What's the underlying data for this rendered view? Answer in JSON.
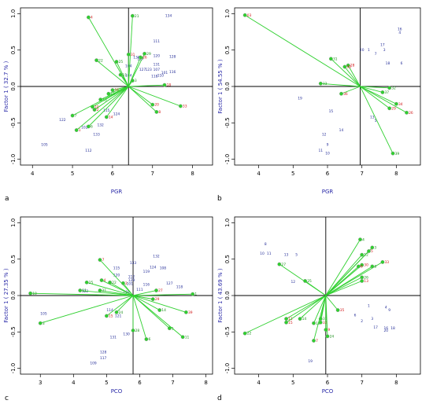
{
  "colors": {
    "vector": "#2fd02f",
    "observation": "#27309a",
    "dot_outline": "#8a8a8a",
    "axis_title": "#2a2aa8",
    "red_label": "#d11b1b",
    "green_label": "#1a8f1a"
  },
  "chart_data": [
    {
      "type": "scatter",
      "panel": "a",
      "xlabel": "PGR",
      "ylabel": "Factor 1 ( 32.7 % )",
      "xlim": [
        3.7,
        8.5
      ],
      "ylim": [
        -1.08,
        1.08
      ],
      "xticks": [
        "4",
        "5",
        "6",
        "7",
        "8"
      ],
      "yticks": [
        "-1.0",
        "-0.5",
        "0.0",
        "0.5",
        "1.0"
      ],
      "origin": [
        6.4,
        0.0
      ],
      "vectors": [
        {
          "label": "4",
          "x": 5.4,
          "y": 0.95,
          "color": "red"
        },
        {
          "label": "21",
          "x": 6.5,
          "y": 0.97,
          "color": "green"
        },
        {
          "label": "33",
          "x": 7.7,
          "y": -0.27,
          "color": "red"
        },
        {
          "label": "18",
          "x": 7.3,
          "y": 0.02,
          "color": "red"
        },
        {
          "label": "25",
          "x": 6.1,
          "y": 0.34,
          "color": "green"
        },
        {
          "label": "22",
          "x": 5.6,
          "y": 0.36,
          "color": "green"
        },
        {
          "label": "31",
          "x": 6.4,
          "y": 0.44,
          "color": "red"
        },
        {
          "label": "29",
          "x": 6.8,
          "y": 0.45,
          "color": "green"
        },
        {
          "label": "26",
          "x": 6.7,
          "y": 0.4,
          "color": "red"
        },
        {
          "label": "11",
          "x": 6.2,
          "y": 0.16,
          "color": "green"
        },
        {
          "label": "20",
          "x": 7.0,
          "y": -0.25,
          "color": "red"
        },
        {
          "label": "8",
          "x": 7.1,
          "y": -0.35,
          "color": "red"
        },
        {
          "label": "16",
          "x": 6.0,
          "y": -0.05,
          "color": "red"
        },
        {
          "label": "13",
          "x": 5.9,
          "y": -0.1,
          "color": "green"
        },
        {
          "label": "15",
          "x": 5.7,
          "y": -0.18,
          "color": "green"
        },
        {
          "label": "10",
          "x": 5.5,
          "y": -0.28,
          "color": "red"
        },
        {
          "label": "2",
          "x": 5.55,
          "y": -0.32,
          "color": "red"
        },
        {
          "label": "7",
          "x": 5.0,
          "y": -0.4,
          "color": "green"
        },
        {
          "label": "1",
          "x": 5.1,
          "y": -0.6,
          "color": "red"
        },
        {
          "label": "14",
          "x": 5.85,
          "y": -0.42,
          "color": "red"
        },
        {
          "label": "6",
          "x": 5.4,
          "y": -0.55,
          "color": "green"
        },
        {
          "label": "3",
          "x": 6.5,
          "y": 0.08,
          "color": "green"
        }
      ],
      "observations": [
        {
          "label": "134",
          "x": 7.4,
          "y": 0.97
        },
        {
          "label": "111",
          "x": 7.1,
          "y": 0.62
        },
        {
          "label": "120",
          "x": 7.1,
          "y": 0.42
        },
        {
          "label": "128",
          "x": 7.5,
          "y": 0.41
        },
        {
          "label": "117",
          "x": 6.7,
          "y": 0.38
        },
        {
          "label": "130",
          "x": 6.6,
          "y": 0.4
        },
        {
          "label": "131",
          "x": 7.1,
          "y": 0.3
        },
        {
          "label": "127",
          "x": 6.75,
          "y": 0.23
        },
        {
          "label": "123",
          "x": 6.9,
          "y": 0.23
        },
        {
          "label": "107",
          "x": 7.1,
          "y": 0.23
        },
        {
          "label": "101",
          "x": 7.3,
          "y": 0.19
        },
        {
          "label": "116",
          "x": 7.5,
          "y": 0.2
        },
        {
          "label": "118",
          "x": 7.05,
          "y": 0.14
        },
        {
          "label": "110",
          "x": 7.2,
          "y": 0.15
        },
        {
          "label": "104",
          "x": 6.4,
          "y": 0.28
        },
        {
          "label": "104",
          "x": 6.4,
          "y": 0.15
        },
        {
          "label": "115",
          "x": 5.85,
          "y": -0.33
        },
        {
          "label": "124",
          "x": 6.1,
          "y": -0.38
        },
        {
          "label": "132",
          "x": 5.7,
          "y": -0.53
        },
        {
          "label": "122",
          "x": 4.75,
          "y": -0.46
        },
        {
          "label": "102",
          "x": 5.3,
          "y": -0.56
        },
        {
          "label": "133",
          "x": 5.6,
          "y": -0.66
        },
        {
          "label": "105",
          "x": 4.3,
          "y": -0.8
        },
        {
          "label": "112",
          "x": 5.4,
          "y": -0.88
        }
      ]
    },
    {
      "type": "scatter",
      "panel": "b",
      "xlabel": "PGR",
      "ylabel": "Factor 1 ( 54.55 % )",
      "xlim": [
        3.3,
        8.7
      ],
      "ylim": [
        -1.08,
        1.08
      ],
      "xticks": [
        "4",
        "5",
        "6",
        "7",
        "8"
      ],
      "yticks": [
        "-1.0",
        "-0.5",
        "0.0",
        "0.5",
        "1.0"
      ],
      "origin": [
        6.95,
        0.0
      ],
      "vectors": [
        {
          "label": "03",
          "x": 3.6,
          "y": 0.98,
          "color": "red"
        },
        {
          "label": "31",
          "x": 6.1,
          "y": 0.38,
          "color": "green"
        },
        {
          "label": "28",
          "x": 6.6,
          "y": 0.29,
          "color": "red"
        },
        {
          "label": "30",
          "x": 6.5,
          "y": 0.27,
          "color": "red"
        },
        {
          "label": "33",
          "x": 5.8,
          "y": 0.04,
          "color": "green"
        },
        {
          "label": "32",
          "x": 7.8,
          "y": -0.02,
          "color": "green"
        },
        {
          "label": "37",
          "x": 7.6,
          "y": -0.08,
          "color": "green"
        },
        {
          "label": "36",
          "x": 6.4,
          "y": -0.1,
          "color": "red"
        },
        {
          "label": "34",
          "x": 8.0,
          "y": -0.24,
          "color": "red"
        },
        {
          "label": "29",
          "x": 7.8,
          "y": -0.3,
          "color": "red"
        },
        {
          "label": "26",
          "x": 8.3,
          "y": -0.36,
          "color": "red"
        },
        {
          "label": "39",
          "x": 7.9,
          "y": -0.92,
          "color": "green"
        }
      ],
      "observations": [
        {
          "label": "16",
          "x": 8.1,
          "y": 0.79
        },
        {
          "label": "4",
          "x": 8.1,
          "y": 0.74
        },
        {
          "label": "17",
          "x": 7.6,
          "y": 0.57
        },
        {
          "label": "3",
          "x": 7.65,
          "y": 0.5
        },
        {
          "label": "20",
          "x": 7.0,
          "y": 0.5
        },
        {
          "label": "1",
          "x": 7.2,
          "y": 0.5
        },
        {
          "label": "7",
          "x": 7.4,
          "y": 0.45
        },
        {
          "label": "18",
          "x": 7.75,
          "y": 0.32
        },
        {
          "label": "6",
          "x": 8.15,
          "y": 0.32
        },
        {
          "label": "19",
          "x": 5.2,
          "y": -0.16
        },
        {
          "label": "15",
          "x": 6.1,
          "y": -0.34
        },
        {
          "label": "13",
          "x": 7.3,
          "y": -0.42
        },
        {
          "label": "5",
          "x": 7.4,
          "y": -0.47
        },
        {
          "label": "14",
          "x": 6.4,
          "y": -0.6
        },
        {
          "label": "12",
          "x": 5.9,
          "y": -0.66
        },
        {
          "label": "9",
          "x": 6.0,
          "y": -0.8
        },
        {
          "label": "11",
          "x": 5.8,
          "y": -0.88
        },
        {
          "label": "10",
          "x": 6.0,
          "y": -0.92
        }
      ]
    },
    {
      "type": "scatter",
      "panel": "c",
      "xlabel": "PCO",
      "ylabel": "Factor 1 ( 27.35 % )",
      "xlim": [
        2.4,
        8.2
      ],
      "ylim": [
        -1.08,
        1.08
      ],
      "xticks": [
        "3",
        "4",
        "5",
        "6",
        "7",
        "8"
      ],
      "yticks": [
        "-1.0",
        "-0.5",
        "0.0",
        "0.5",
        "1.0"
      ],
      "origin": [
        5.8,
        0.0
      ],
      "vectors": [
        {
          "label": "10",
          "x": 2.7,
          "y": 0.03,
          "color": "green"
        },
        {
          "label": "3",
          "x": 3.0,
          "y": -0.38,
          "color": "green"
        },
        {
          "label": "7",
          "x": 4.8,
          "y": 0.49,
          "color": "red"
        },
        {
          "label": "25",
          "x": 4.4,
          "y": 0.18,
          "color": "green"
        },
        {
          "label": "4",
          "x": 4.85,
          "y": 0.21,
          "color": "red"
        },
        {
          "label": "22",
          "x": 5.1,
          "y": 0.18,
          "color": "green"
        },
        {
          "label": "11",
          "x": 4.2,
          "y": 0.07,
          "color": "green"
        },
        {
          "label": "21",
          "x": 4.8,
          "y": 0.07,
          "color": "green"
        },
        {
          "label": "2",
          "x": 5.5,
          "y": 0.17,
          "color": "red"
        },
        {
          "label": "1",
          "x": 7.6,
          "y": 0.02,
          "color": "green"
        },
        {
          "label": "27",
          "x": 6.5,
          "y": 0.07,
          "color": "red"
        },
        {
          "label": "29",
          "x": 6.4,
          "y": -0.05,
          "color": "red"
        },
        {
          "label": "39",
          "x": 7.4,
          "y": -0.23,
          "color": "red"
        },
        {
          "label": "14",
          "x": 6.6,
          "y": -0.2,
          "color": "green"
        },
        {
          "label": "24",
          "x": 5.3,
          "y": -0.23,
          "color": "green"
        },
        {
          "label": "15",
          "x": 5.0,
          "y": -0.28,
          "color": "red"
        },
        {
          "label": "28",
          "x": 5.8,
          "y": -0.48,
          "color": "green"
        },
        {
          "label": "5",
          "x": 6.9,
          "y": -0.45,
          "color": "green"
        },
        {
          "label": "11",
          "x": 7.3,
          "y": -0.57,
          "color": "green"
        },
        {
          "label": "6",
          "x": 6.2,
          "y": -0.6,
          "color": "green"
        }
      ],
      "observations": [
        {
          "label": "133",
          "x": 5.8,
          "y": 0.45
        },
        {
          "label": "132",
          "x": 6.5,
          "y": 0.54
        },
        {
          "label": "115",
          "x": 5.3,
          "y": 0.38
        },
        {
          "label": "124",
          "x": 6.4,
          "y": 0.39
        },
        {
          "label": "108",
          "x": 6.7,
          "y": 0.38
        },
        {
          "label": "119",
          "x": 6.2,
          "y": 0.33
        },
        {
          "label": "120",
          "x": 5.3,
          "y": 0.28
        },
        {
          "label": "112",
          "x": 5.75,
          "y": 0.26
        },
        {
          "label": "129",
          "x": 5.75,
          "y": 0.21
        },
        {
          "label": "101",
          "x": 5.7,
          "y": 0.16
        },
        {
          "label": "116",
          "x": 6.2,
          "y": 0.15
        },
        {
          "label": "127",
          "x": 6.9,
          "y": 0.17
        },
        {
          "label": "118",
          "x": 7.2,
          "y": 0.12
        },
        {
          "label": "122",
          "x": 4.35,
          "y": 0.06
        },
        {
          "label": "105",
          "x": 3.1,
          "y": -0.25
        },
        {
          "label": "104",
          "x": 5.6,
          "y": 0.05
        },
        {
          "label": "114",
          "x": 5.1,
          "y": -0.2
        },
        {
          "label": "121",
          "x": 5.35,
          "y": -0.28
        },
        {
          "label": "131",
          "x": 5.2,
          "y": -0.57
        },
        {
          "label": "130",
          "x": 5.6,
          "y": -0.53
        },
        {
          "label": "128",
          "x": 4.9,
          "y": -0.78
        },
        {
          "label": "117",
          "x": 4.9,
          "y": -0.86
        },
        {
          "label": "109",
          "x": 4.6,
          "y": -0.93
        },
        {
          "label": "111",
          "x": 6.0,
          "y": 0.08
        }
      ]
    },
    {
      "type": "scatter",
      "panel": "d",
      "xlabel": "PCO",
      "ylabel": "Factor 1 ( 43.69 % )",
      "xlim": [
        3.3,
        8.7
      ],
      "ylim": [
        -1.08,
        1.08
      ],
      "xticks": [
        "4",
        "5",
        "6",
        "7",
        "8"
      ],
      "yticks": [
        "-1.0",
        "-0.5",
        "0.0",
        "0.5",
        "1.0"
      ],
      "origin": [
        5.95,
        0.0
      ],
      "vectors": [
        {
          "label": "4",
          "x": 6.95,
          "y": 0.77,
          "color": "green"
        },
        {
          "label": "3",
          "x": 7.3,
          "y": 0.66,
          "color": "green"
        },
        {
          "label": "5",
          "x": 7.2,
          "y": 0.61,
          "color": "red"
        },
        {
          "label": "12",
          "x": 7.0,
          "y": 0.56,
          "color": "green"
        },
        {
          "label": "33",
          "x": 7.6,
          "y": 0.46,
          "color": "red"
        },
        {
          "label": "30",
          "x": 7.0,
          "y": 0.42,
          "color": "red"
        },
        {
          "label": "8",
          "x": 7.3,
          "y": 0.4,
          "color": "green"
        },
        {
          "label": "6",
          "x": 6.9,
          "y": 0.4,
          "color": "red"
        },
        {
          "label": "26",
          "x": 7.0,
          "y": 0.25,
          "color": "green"
        },
        {
          "label": "13",
          "x": 7.0,
          "y": 0.2,
          "color": "red"
        },
        {
          "label": "27",
          "x": 4.6,
          "y": 0.43,
          "color": "green"
        },
        {
          "label": "25",
          "x": 5.35,
          "y": 0.2,
          "color": "green"
        },
        {
          "label": "35",
          "x": 6.3,
          "y": -0.2,
          "color": "red"
        },
        {
          "label": "22",
          "x": 3.6,
          "y": -0.52,
          "color": "green"
        },
        {
          "label": "11",
          "x": 4.8,
          "y": -0.32,
          "color": "red"
        },
        {
          "label": "15",
          "x": 4.8,
          "y": -0.37,
          "color": "red"
        },
        {
          "label": "14",
          "x": 5.2,
          "y": -0.32,
          "color": "green"
        },
        {
          "label": "19",
          "x": 5.6,
          "y": -0.38,
          "color": "green"
        },
        {
          "label": "32",
          "x": 5.8,
          "y": -0.37,
          "color": "red"
        },
        {
          "label": "31",
          "x": 5.8,
          "y": -0.32,
          "color": "green"
        },
        {
          "label": "9",
          "x": 5.95,
          "y": -0.47,
          "color": "red"
        },
        {
          "label": "24",
          "x": 6.0,
          "y": -0.56,
          "color": "green"
        },
        {
          "label": "7",
          "x": 5.6,
          "y": -0.62,
          "color": "red"
        }
      ],
      "observations": [
        {
          "label": "8",
          "x": 4.2,
          "y": 0.71
        },
        {
          "label": "10",
          "x": 4.1,
          "y": 0.58
        },
        {
          "label": "11",
          "x": 4.3,
          "y": 0.58
        },
        {
          "label": "13",
          "x": 4.8,
          "y": 0.56
        },
        {
          "label": "5",
          "x": 5.1,
          "y": 0.56
        },
        {
          "label": "12",
          "x": 5.0,
          "y": 0.19
        },
        {
          "label": "6",
          "x": 6.8,
          "y": -0.27
        },
        {
          "label": "1",
          "x": 7.2,
          "y": -0.14
        },
        {
          "label": "4",
          "x": 7.7,
          "y": -0.16
        },
        {
          "label": "9",
          "x": 7.8,
          "y": -0.2
        },
        {
          "label": "2",
          "x": 7.0,
          "y": -0.35
        },
        {
          "label": "3",
          "x": 7.3,
          "y": -0.32
        },
        {
          "label": "17",
          "x": 7.4,
          "y": -0.44
        },
        {
          "label": "16",
          "x": 7.7,
          "y": -0.45
        },
        {
          "label": "18",
          "x": 7.9,
          "y": -0.45
        },
        {
          "label": "20",
          "x": 7.7,
          "y": -0.48
        },
        {
          "label": "19",
          "x": 5.5,
          "y": -0.9
        }
      ]
    }
  ]
}
